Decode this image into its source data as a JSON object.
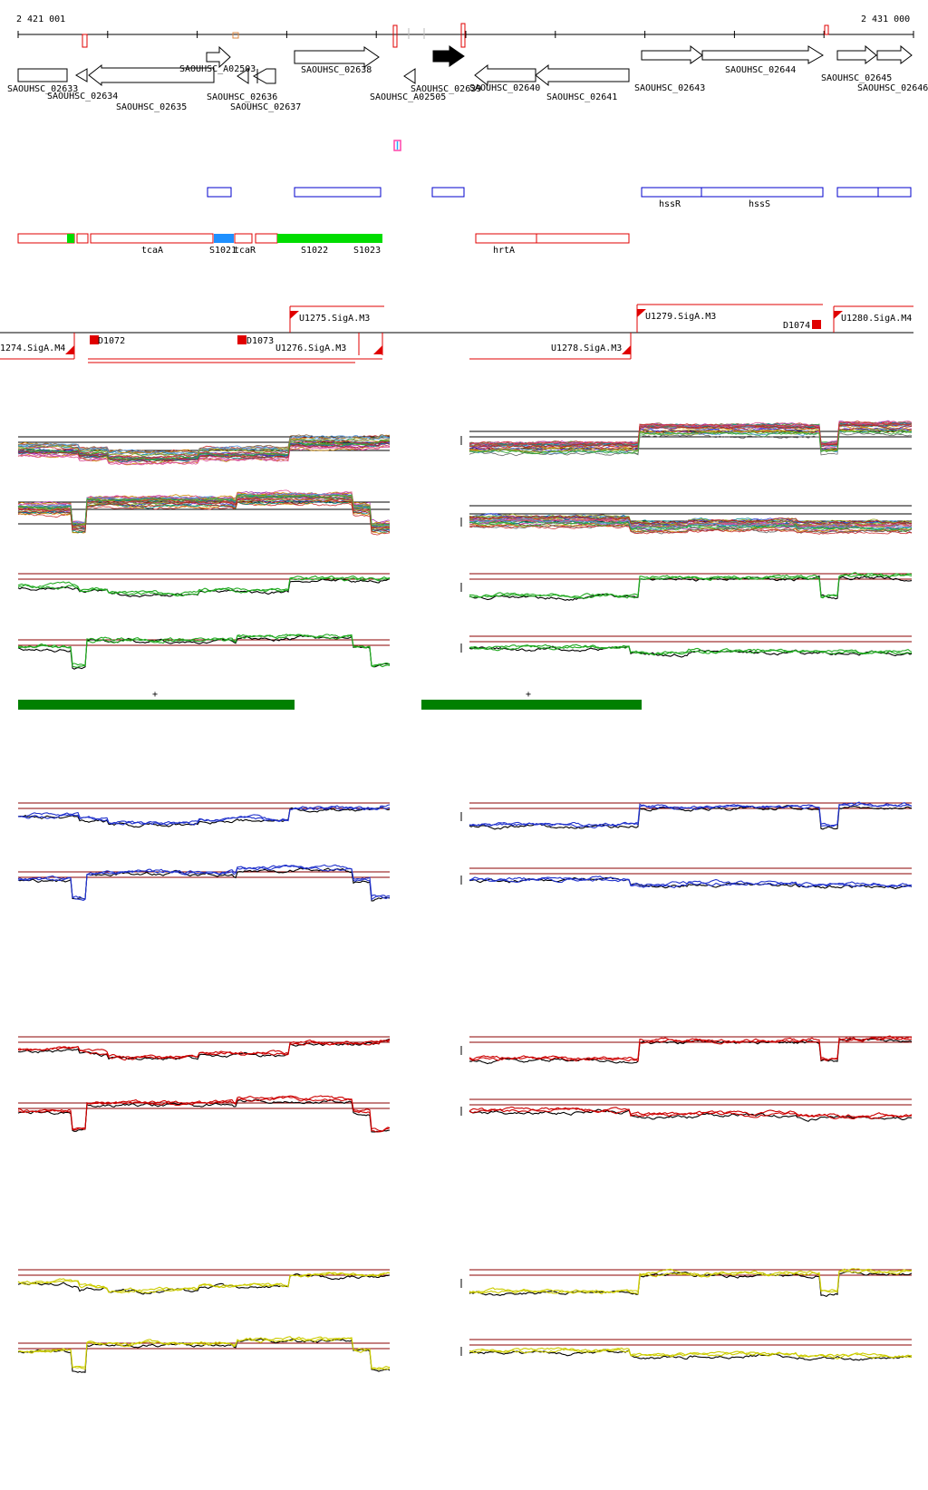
{
  "coordinates": {
    "start_label": "2 421 001",
    "end_label": "2 431 000"
  },
  "colors": {
    "gene_fill": "#ffffff",
    "gene_stroke": "#000000",
    "highlight_gene": "#000000",
    "blue_box": "#0000cc",
    "red_box": "#e00000",
    "green_fill": "#00dd00",
    "cyan_fill": "#1e90ff",
    "operon_red": "#ee0000",
    "region_green": "#008000",
    "ref_line": "#8b0000",
    "blue_series": "#2233cc",
    "red_series": "#cc0000",
    "yellow_series": "#cccc00",
    "green_series": "#22aa22"
  },
  "genes": [
    {
      "name": "SAOUHSC_02633",
      "dir": "none"
    },
    {
      "name": "SAOUHSC_02634",
      "dir": "left"
    },
    {
      "name": "SAOUHSC_02635",
      "dir": "left"
    },
    {
      "name": "SAOUHSC_A02503",
      "dir": "right"
    },
    {
      "name": "SAOUHSC_02636",
      "dir": "left"
    },
    {
      "name": "SAOUHSC_02637",
      "dir": "left"
    },
    {
      "name": "SAOUHSC_02638",
      "dir": "right"
    },
    {
      "name": "SAOUHSC_A02505",
      "dir": "left"
    },
    {
      "name": "SAOUHSC_02639",
      "dir": "right",
      "highlight": true
    },
    {
      "name": "SAOUHSC_02640",
      "dir": "left"
    },
    {
      "name": "SAOUHSC_02641",
      "dir": "left"
    },
    {
      "name": "SAOUHSC_02643",
      "dir": "right"
    },
    {
      "name": "SAOUHSC_02644",
      "dir": "right"
    },
    {
      "name": "SAOUHSC_02645",
      "dir": "right"
    },
    {
      "name": "SAOUHSC_02646",
      "dir": "right"
    }
  ],
  "blue_features": [
    {
      "label": "hssR"
    },
    {
      "label": "hssS"
    }
  ],
  "red_features": [
    {
      "label": "tcaA"
    },
    {
      "label": "S1021"
    },
    {
      "label": "tcaR"
    },
    {
      "label": "S1022"
    },
    {
      "label": "S1023"
    },
    {
      "label": "hrtA"
    }
  ],
  "operons": [
    {
      "label": "U1275.SigA.M3"
    },
    {
      "label": "U1279.SigA.M3"
    },
    {
      "label": "D1074"
    },
    {
      "label": "U1280.SigA.M4"
    },
    {
      "label": "1274.SigA.M4"
    },
    {
      "label": "D1072"
    },
    {
      "label": "D1073"
    },
    {
      "label": "U1276.SigA.M3"
    },
    {
      "label": "U1278.SigA.M3"
    }
  ],
  "region_marks": [
    "+",
    "+"
  ],
  "panels": [
    "multi-condition",
    "green",
    "blue",
    "red",
    "yellow"
  ]
}
